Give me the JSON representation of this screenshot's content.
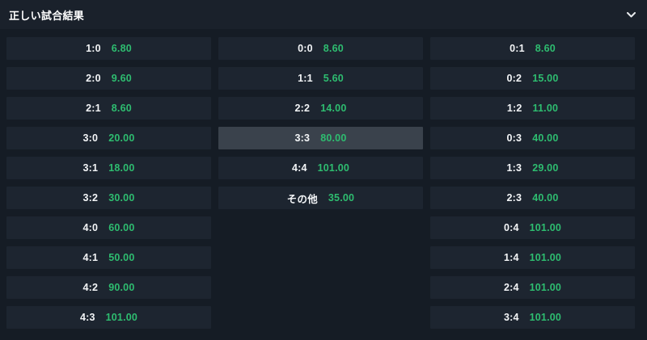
{
  "header": {
    "title": "正しい試合結果",
    "collapse_icon": "chevron-down-icon"
  },
  "colors": {
    "page_bg": "#151c25",
    "header_bg": "#1a212b",
    "button_bg": "#1d2530",
    "button_hover_bg": "#3a424c",
    "score_color": "#f3f5f7",
    "odds_color": "#2ebd70",
    "title_color": "#ffffff",
    "icon_color": "#e8ebee"
  },
  "columns": [
    {
      "items": [
        {
          "label": "1:0",
          "odds": "6.80"
        },
        {
          "label": "2:0",
          "odds": "9.60"
        },
        {
          "label": "2:1",
          "odds": "8.60"
        },
        {
          "label": "3:0",
          "odds": "20.00"
        },
        {
          "label": "3:1",
          "odds": "18.00"
        },
        {
          "label": "3:2",
          "odds": "30.00"
        },
        {
          "label": "4:0",
          "odds": "60.00"
        },
        {
          "label": "4:1",
          "odds": "50.00"
        },
        {
          "label": "4:2",
          "odds": "90.00"
        },
        {
          "label": "4:3",
          "odds": "101.00"
        }
      ]
    },
    {
      "items": [
        {
          "label": "0:0",
          "odds": "8.60"
        },
        {
          "label": "1:1",
          "odds": "5.60"
        },
        {
          "label": "2:2",
          "odds": "14.00"
        },
        {
          "label": "3:3",
          "odds": "80.00",
          "highlighted": true
        },
        {
          "label": "4:4",
          "odds": "101.00"
        },
        {
          "label": "その他",
          "odds": "35.00"
        }
      ]
    },
    {
      "items": [
        {
          "label": "0:1",
          "odds": "8.60"
        },
        {
          "label": "0:2",
          "odds": "15.00"
        },
        {
          "label": "1:2",
          "odds": "11.00"
        },
        {
          "label": "0:3",
          "odds": "40.00"
        },
        {
          "label": "1:3",
          "odds": "29.00"
        },
        {
          "label": "2:3",
          "odds": "40.00"
        },
        {
          "label": "0:4",
          "odds": "101.00"
        },
        {
          "label": "1:4",
          "odds": "101.00"
        },
        {
          "label": "2:4",
          "odds": "101.00"
        },
        {
          "label": "3:4",
          "odds": "101.00"
        }
      ]
    }
  ]
}
